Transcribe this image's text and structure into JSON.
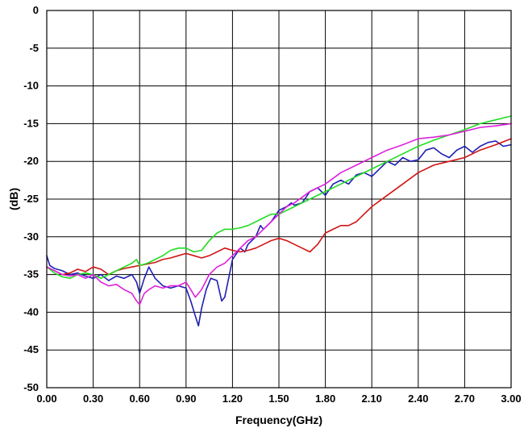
{
  "chart_data": {
    "type": "line",
    "title": "",
    "xlabel": "Frequency(GHz)",
    "ylabel": "(dB)",
    "xlim": [
      0,
      3
    ],
    "ylim": [
      -50,
      0
    ],
    "grid": true,
    "x_ticks": [
      "0.00",
      "0.30",
      "0.60",
      "0.90",
      "1.20",
      "1.50",
      "1.80",
      "2.10",
      "2.40",
      "2.70",
      "3.00"
    ],
    "y_ticks": [
      "0",
      "-5",
      "-10",
      "-15",
      "-20",
      "-25",
      "-30",
      "-35",
      "-40",
      "-45",
      "-50"
    ],
    "series": [
      {
        "color": "#1e1eb4",
        "x": [
          0,
          0.02,
          0.05,
          0.1,
          0.15,
          0.2,
          0.25,
          0.3,
          0.35,
          0.4,
          0.45,
          0.5,
          0.55,
          0.58,
          0.6,
          0.63,
          0.66,
          0.7,
          0.75,
          0.8,
          0.85,
          0.9,
          0.93,
          0.96,
          0.98,
          1.0,
          1.03,
          1.06,
          1.1,
          1.13,
          1.15,
          1.18,
          1.2,
          1.25,
          1.28,
          1.3,
          1.35,
          1.38,
          1.4,
          1.45,
          1.5,
          1.55,
          1.58,
          1.6,
          1.65,
          1.7,
          1.75,
          1.8,
          1.85,
          1.9,
          1.95,
          2.0,
          2.05,
          2.1,
          2.15,
          2.2,
          2.25,
          2.3,
          2.35,
          2.4,
          2.45,
          2.5,
          2.55,
          2.6,
          2.65,
          2.7,
          2.75,
          2.8,
          2.85,
          2.9,
          2.95,
          3.0
        ],
        "y": [
          -32.5,
          -33.8,
          -34.2,
          -34.5,
          -35.0,
          -34.8,
          -35.2,
          -35.5,
          -35.0,
          -35.8,
          -35.2,
          -35.5,
          -35.0,
          -36.0,
          -37.5,
          -35.5,
          -34.0,
          -35.5,
          -36.5,
          -36.8,
          -36.5,
          -36.8,
          -38.5,
          -40.5,
          -41.8,
          -39.5,
          -37.0,
          -35.5,
          -35.8,
          -38.5,
          -38.0,
          -35.0,
          -33.0,
          -31.5,
          -32.0,
          -31.0,
          -30.0,
          -28.5,
          -29.0,
          -28.0,
          -26.5,
          -26.0,
          -25.5,
          -25.8,
          -25.5,
          -24.0,
          -23.5,
          -24.5,
          -23.0,
          -22.5,
          -23.0,
          -21.8,
          -21.5,
          -22.0,
          -21.0,
          -20.0,
          -20.5,
          -19.5,
          -20.0,
          -19.8,
          -18.5,
          -18.2,
          -19.0,
          -19.5,
          -18.5,
          -18.0,
          -18.8,
          -18.0,
          -17.5,
          -17.3,
          -18.0,
          -17.8
        ]
      },
      {
        "color": "#d21414",
        "x": [
          0,
          0.05,
          0.1,
          0.15,
          0.2,
          0.25,
          0.3,
          0.35,
          0.4,
          0.45,
          0.5,
          0.55,
          0.6,
          0.65,
          0.7,
          0.75,
          0.8,
          0.85,
          0.9,
          0.95,
          1.0,
          1.05,
          1.1,
          1.15,
          1.2,
          1.25,
          1.3,
          1.35,
          1.4,
          1.45,
          1.5,
          1.55,
          1.6,
          1.65,
          1.7,
          1.75,
          1.8,
          1.85,
          1.9,
          1.95,
          2.0,
          2.05,
          2.1,
          2.2,
          2.3,
          2.4,
          2.5,
          2.6,
          2.7,
          2.8,
          2.9,
          3.0
        ],
        "y": [
          -34.0,
          -34.5,
          -35.0,
          -34.8,
          -34.3,
          -34.6,
          -34.0,
          -34.3,
          -35.0,
          -34.5,
          -34.2,
          -34.0,
          -33.8,
          -33.6,
          -33.4,
          -33.0,
          -32.8,
          -32.5,
          -32.2,
          -32.5,
          -32.8,
          -32.5,
          -32.0,
          -31.5,
          -31.8,
          -32.0,
          -31.8,
          -31.5,
          -31.0,
          -30.5,
          -30.2,
          -30.5,
          -31.0,
          -31.5,
          -32.0,
          -31.0,
          -29.5,
          -29.0,
          -28.5,
          -28.5,
          -28.0,
          -27.0,
          -26.0,
          -24.5,
          -23.0,
          -21.5,
          -20.5,
          -20.0,
          -19.5,
          -18.5,
          -17.8,
          -17.0
        ]
      },
      {
        "color": "#22dd22",
        "x": [
          0,
          0.05,
          0.1,
          0.15,
          0.2,
          0.25,
          0.3,
          0.35,
          0.4,
          0.45,
          0.5,
          0.55,
          0.58,
          0.6,
          0.65,
          0.7,
          0.75,
          0.8,
          0.85,
          0.9,
          0.95,
          1.0,
          1.05,
          1.1,
          1.15,
          1.2,
          1.25,
          1.3,
          1.35,
          1.4,
          1.45,
          1.5,
          1.55,
          1.6,
          1.65,
          1.7,
          1.8,
          1.9,
          2.0,
          2.1,
          2.2,
          2.3,
          2.4,
          2.5,
          2.6,
          2.7,
          2.8,
          2.9,
          3.0
        ],
        "y": [
          -34.0,
          -34.8,
          -35.3,
          -35.5,
          -35.0,
          -34.8,
          -35.0,
          -35.5,
          -35.0,
          -34.5,
          -34.0,
          -33.5,
          -33.0,
          -33.8,
          -33.5,
          -33.0,
          -32.5,
          -31.8,
          -31.5,
          -31.5,
          -32.0,
          -31.8,
          -30.5,
          -29.5,
          -29.0,
          -29.0,
          -28.8,
          -28.5,
          -28.0,
          -27.5,
          -27.0,
          -27.0,
          -26.5,
          -26.0,
          -25.5,
          -25.0,
          -24.0,
          -23.0,
          -22.0,
          -21.0,
          -20.0,
          -19.0,
          -18.0,
          -17.2,
          -16.5,
          -15.8,
          -15.0,
          -14.5,
          -14.0
        ]
      },
      {
        "color": "#dd22dd",
        "x": [
          0,
          0.05,
          0.1,
          0.15,
          0.2,
          0.25,
          0.3,
          0.35,
          0.4,
          0.45,
          0.5,
          0.55,
          0.58,
          0.6,
          0.63,
          0.66,
          0.7,
          0.75,
          0.8,
          0.85,
          0.9,
          0.93,
          0.96,
          0.98,
          1.0,
          1.05,
          1.1,
          1.15,
          1.2,
          1.25,
          1.3,
          1.35,
          1.4,
          1.45,
          1.5,
          1.55,
          1.6,
          1.7,
          1.8,
          1.9,
          2.0,
          2.1,
          2.2,
          2.3,
          2.4,
          2.5,
          2.6,
          2.7,
          2.8,
          2.9,
          3.0
        ],
        "y": [
          -34.0,
          -34.5,
          -35.0,
          -35.2,
          -35.0,
          -35.5,
          -35.0,
          -36.0,
          -36.5,
          -36.3,
          -37.0,
          -37.5,
          -38.5,
          -39.0,
          -37.5,
          -37.0,
          -36.5,
          -36.8,
          -36.5,
          -36.5,
          -36.0,
          -37.0,
          -38.0,
          -37.5,
          -37.0,
          -35.0,
          -34.0,
          -33.5,
          -32.5,
          -31.5,
          -30.5,
          -30.0,
          -29.0,
          -28.0,
          -27.0,
          -26.0,
          -25.5,
          -24.0,
          -23.0,
          -21.5,
          -20.5,
          -19.5,
          -18.5,
          -17.8,
          -17.0,
          -16.8,
          -16.5,
          -16.0,
          -15.5,
          -15.3,
          -15.0
        ]
      }
    ]
  }
}
